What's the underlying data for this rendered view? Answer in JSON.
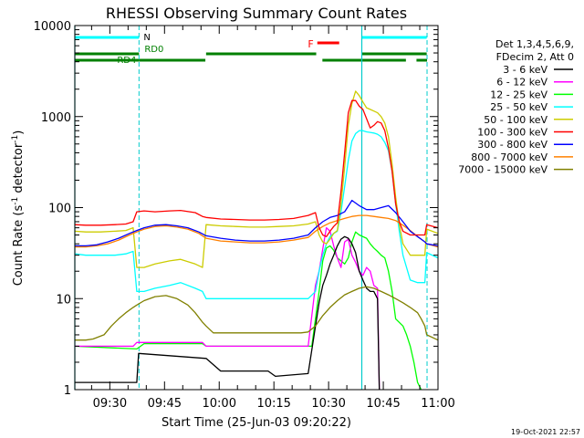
{
  "chart_data": {
    "type": "line",
    "title": "RHESSI Observing Summary Count Rates",
    "xlabel": "Start Time (25-Jun-03 09:20:22)",
    "ylabel": "Count Rate (s",
    "ylabel_sup1": "-1",
    "ylabel_mid": " detector",
    "ylabel_sup2": "-1",
    "ylabel_end": ")",
    "yscale": "log",
    "x_unit": "minutes after 09:20:22",
    "xlim": [
      0,
      99.6
    ],
    "ylim": [
      1,
      10000
    ],
    "x_ticks": [
      {
        "label": "09:30",
        "x": 9.6
      },
      {
        "label": "09:45",
        "x": 24.6
      },
      {
        "label": "10:00",
        "x": 39.6
      },
      {
        "label": "10:15",
        "x": 54.6
      },
      {
        "label": "10:30",
        "x": 69.6
      },
      {
        "label": "10:45",
        "x": 84.6
      },
      {
        "label": "11:00",
        "x": 99.6
      }
    ],
    "y_ticks": [
      {
        "label": "1",
        "y": 1
      },
      {
        "label": "10",
        "y": 10
      },
      {
        "label": "100",
        "y": 100
      },
      {
        "label": "1000",
        "y": 1000
      },
      {
        "label": "10000",
        "y": 10000
      }
    ],
    "legend_header": [
      "Det 1,3,4,5,6,9,",
      "FDecim 2, Att 0"
    ],
    "series": [
      {
        "name": "3 - 6 keV",
        "color": "#000000",
        "x": [
          0,
          17,
          17.5,
          36,
          40,
          53,
          55,
          64,
          67,
          68,
          69,
          70,
          71,
          72,
          73,
          74,
          75,
          76,
          77,
          78,
          79,
          80,
          81,
          82,
          83,
          83.5
        ],
        "y": [
          1.2,
          1.2,
          2.5,
          2.2,
          1.6,
          1.6,
          1.4,
          1.5,
          9,
          14,
          18,
          24,
          30,
          38,
          45,
          48,
          46,
          40,
          32,
          20,
          16,
          13,
          12,
          12,
          10,
          1
        ]
      },
      {
        "name": "6 - 12 keV",
        "color": "#ff00ff",
        "x": [
          0,
          16,
          17,
          35,
          36,
          64,
          66,
          67,
          68,
          69,
          70,
          71,
          72,
          73,
          74,
          75,
          76,
          77,
          78,
          79,
          80,
          81,
          82,
          83,
          83.5
        ],
        "y": [
          3,
          3,
          3.3,
          3.3,
          3,
          3,
          14,
          20,
          35,
          60,
          55,
          38,
          28,
          22,
          42,
          45,
          30,
          25,
          20,
          18,
          22,
          20,
          14,
          13,
          1
        ]
      },
      {
        "name": "12 - 25 keV",
        "color": "#00ff00",
        "x": [
          0,
          17,
          19,
          35,
          36,
          65,
          67,
          68,
          69,
          70,
          71,
          72,
          73,
          74,
          75,
          76,
          77,
          78,
          80,
          81,
          82,
          83,
          84,
          85,
          86,
          87,
          88,
          90,
          91,
          92,
          93,
          94,
          95
        ],
        "y": [
          3,
          2.8,
          3.2,
          3.2,
          3,
          3,
          12,
          26,
          36,
          38,
          34,
          28,
          26,
          24,
          28,
          42,
          54,
          50,
          46,
          40,
          36,
          33,
          30,
          28,
          20,
          12,
          6,
          5,
          4,
          3,
          2,
          1.2,
          1
        ]
      },
      {
        "name": "25 - 50 keV",
        "color": "#00ffff",
        "x": [
          0,
          3,
          7,
          11,
          14,
          16,
          17,
          19,
          22,
          26,
          29,
          33,
          35,
          36,
          40,
          44,
          48,
          52,
          56,
          60,
          64,
          66,
          67,
          68,
          69,
          70,
          71,
          72,
          73,
          74,
          75,
          76,
          77,
          78,
          79,
          80,
          81,
          82,
          83,
          84,
          85,
          86,
          87,
          88,
          89,
          90,
          92,
          94,
          95,
          96,
          96.5,
          99.6
        ],
        "y": [
          31,
          30,
          30,
          30,
          31,
          33,
          12,
          12,
          13,
          14,
          15,
          13,
          12,
          10,
          10,
          10,
          10,
          10,
          10,
          10,
          10,
          12,
          20,
          30,
          40,
          48,
          52,
          55,
          90,
          170,
          330,
          540,
          650,
          700,
          700,
          680,
          670,
          660,
          640,
          600,
          520,
          420,
          250,
          110,
          55,
          30,
          16,
          15,
          15,
          15,
          32,
          28
        ]
      },
      {
        "name": "50 - 100 keV",
        "color": "#cccc00",
        "x": [
          0,
          3,
          7,
          11,
          14,
          16,
          17,
          19,
          22,
          26,
          29,
          33,
          35,
          36,
          40,
          44,
          48,
          52,
          56,
          60,
          64,
          66,
          67,
          68,
          69,
          70,
          71,
          72,
          73,
          74,
          75,
          76,
          77,
          78,
          79,
          80,
          81,
          82,
          83,
          84,
          85,
          86,
          87,
          88,
          89,
          90,
          92,
          94,
          95,
          96,
          96.5,
          99.6
        ],
        "y": [
          55,
          54,
          54,
          55,
          56,
          60,
          22,
          22,
          24,
          26,
          27,
          24,
          22,
          65,
          63,
          62,
          61,
          61,
          62,
          63,
          66,
          70,
          50,
          42,
          40,
          45,
          52,
          56,
          110,
          280,
          800,
          1400,
          1900,
          1700,
          1450,
          1250,
          1200,
          1150,
          1100,
          1000,
          850,
          600,
          300,
          130,
          65,
          40,
          30,
          30,
          30,
          30,
          58,
          52
        ]
      },
      {
        "name": "100 - 300 keV",
        "color": "#ff0000",
        "x": [
          0,
          3,
          7,
          11,
          14,
          16,
          17,
          19,
          22,
          26,
          29,
          33,
          35,
          36,
          40,
          44,
          48,
          52,
          56,
          60,
          64,
          66,
          67,
          68,
          69,
          70,
          71,
          72,
          73,
          74,
          75,
          76,
          77,
          78,
          79,
          80,
          81,
          82,
          83,
          84,
          85,
          86,
          87,
          88,
          89,
          90,
          92,
          94,
          95,
          96,
          96.5,
          99.6
        ],
        "y": [
          65,
          64,
          64,
          65,
          66,
          70,
          90,
          92,
          90,
          92,
          93,
          88,
          80,
          78,
          75,
          74,
          73,
          73,
          74,
          76,
          82,
          88,
          60,
          50,
          48,
          55,
          62,
          68,
          150,
          400,
          1100,
          1500,
          1500,
          1300,
          1200,
          950,
          750,
          800,
          880,
          850,
          700,
          450,
          250,
          110,
          70,
          55,
          50,
          50,
          50,
          50,
          65,
          60
        ]
      },
      {
        "name": "300 - 800 keV",
        "color": "#0000ff",
        "x": [
          0,
          3,
          6,
          9,
          12,
          15,
          17,
          19,
          22,
          25,
          28,
          31,
          34,
          36,
          40,
          44,
          48,
          52,
          56,
          60,
          64,
          66,
          68,
          70,
          72,
          74,
          76,
          78,
          80,
          82,
          84,
          86,
          88,
          90,
          92,
          94,
          95,
          96,
          96.5,
          99.6
        ],
        "y": [
          38,
          38,
          39,
          42,
          46,
          52,
          56,
          60,
          64,
          65,
          63,
          60,
          54,
          49,
          46,
          44,
          43,
          43,
          44,
          46,
          50,
          60,
          70,
          78,
          82,
          90,
          120,
          105,
          95,
          95,
          100,
          105,
          88,
          70,
          55,
          48,
          45,
          42,
          40,
          38
        ]
      },
      {
        "name": "800 - 7000 keV",
        "color": "#ff8000",
        "x": [
          0,
          3,
          6,
          9,
          12,
          15,
          17,
          19,
          22,
          25,
          28,
          31,
          34,
          36,
          40,
          44,
          48,
          52,
          56,
          60,
          64,
          66,
          68,
          70,
          72,
          74,
          76,
          78,
          80,
          82,
          84,
          86,
          88,
          90,
          92,
          94,
          95,
          96,
          96.5,
          99.6
        ],
        "y": [
          37,
          37,
          38,
          40,
          44,
          50,
          54,
          58,
          62,
          63,
          61,
          58,
          52,
          46,
          43,
          42,
          41,
          41,
          42,
          44,
          47,
          55,
          62,
          68,
          72,
          76,
          80,
          82,
          82,
          80,
          78,
          76,
          72,
          64,
          56,
          48,
          45,
          42,
          40,
          37
        ]
      },
      {
        "name": "7000 - 15000 keV",
        "color": "#808000",
        "x": [
          0,
          3,
          5,
          8,
          10,
          12,
          14,
          16,
          17,
          19,
          22,
          25,
          28,
          31,
          33,
          35,
          36,
          38,
          44,
          50,
          56,
          62,
          64,
          66,
          68,
          70,
          72,
          74,
          76,
          78,
          80,
          82,
          84,
          86,
          88,
          90,
          92,
          94,
          95,
          96,
          96.5,
          99.6
        ],
        "y": [
          3.5,
          3.5,
          3.6,
          4,
          5,
          6,
          7,
          8,
          8.5,
          9.5,
          10.5,
          10.8,
          10,
          8.5,
          7,
          5.5,
          5,
          4.2,
          4.2,
          4.2,
          4.2,
          4.2,
          4.3,
          5,
          6.5,
          8,
          9.5,
          11,
          12,
          13,
          13.5,
          13,
          12,
          11,
          10,
          9,
          8,
          7,
          6,
          5,
          4,
          3.5
        ]
      }
    ],
    "attenuator": {
      "label_N": "N",
      "label_F": "F",
      "label_RD0": "RD0",
      "label_RD4": "RD4",
      "night_intervals": [
        [
          0,
          17.6
        ],
        [
          78.7,
          96.5
        ]
      ],
      "flare_intervals": [
        [
          66.5,
          72.5
        ]
      ],
      "saa_level1_intervals": [
        [
          0,
          17.6
        ],
        [
          36,
          66.2
        ],
        [
          78.7,
          96.5
        ]
      ],
      "saa_level2_intervals": [
        [
          0,
          17.6
        ],
        [
          17.6,
          35.8
        ],
        [
          67.9,
          90.8
        ],
        [
          93.7,
          96.6
        ]
      ],
      "dashed_markers": [
        17.6,
        96.6
      ],
      "solid_markers": [
        0,
        78.7
      ]
    }
  },
  "footer": {
    "timestamp": "19-Oct-2021 22:57"
  },
  "colors": {
    "night_bar": "#00ffff",
    "flare_bar": "#ff0000",
    "saa_bar": "#008000",
    "dashed_marker": "#00cccc"
  }
}
